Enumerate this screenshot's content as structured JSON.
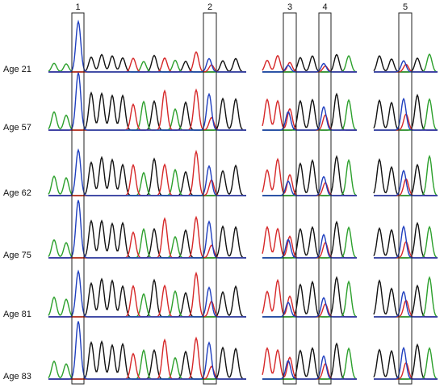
{
  "rows": [
    {
      "label": "Age 21"
    },
    {
      "label": "Age 57"
    },
    {
      "label": "Age 62"
    },
    {
      "label": "Age 75"
    },
    {
      "label": "Age 81"
    },
    {
      "label": "Age 83"
    }
  ],
  "markers": [
    {
      "label": "1"
    },
    {
      "label": "2"
    },
    {
      "label": "3"
    },
    {
      "label": "4"
    },
    {
      "label": "5"
    }
  ]
}
